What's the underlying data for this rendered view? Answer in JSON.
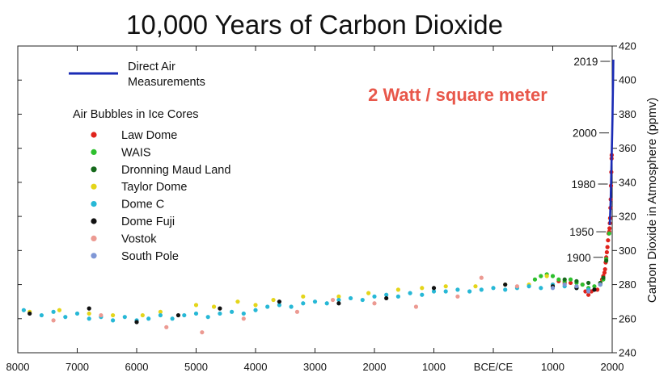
{
  "chart_data": {
    "type": "scatter",
    "title": "10,000 Years of Carbon Dioxide",
    "ylabel": "Carbon Dioxide in Atmosphere (ppmv)",
    "xlabel": "",
    "xlim": [
      -8000,
      2000
    ],
    "ylim": [
      240,
      420
    ],
    "x_ticks": [
      {
        "value": -8000,
        "label": "8000"
      },
      {
        "value": -7000,
        "label": "7000"
      },
      {
        "value": -6000,
        "label": "6000"
      },
      {
        "value": -5000,
        "label": "5000"
      },
      {
        "value": -4000,
        "label": "4000"
      },
      {
        "value": -3000,
        "label": "3000"
      },
      {
        "value": -2000,
        "label": "2000"
      },
      {
        "value": -1000,
        "label": "1000"
      },
      {
        "value": 0,
        "label": "BCE/CE"
      },
      {
        "value": 1000,
        "label": "1000"
      },
      {
        "value": 2000,
        "label": "2000"
      }
    ],
    "y_ticks": [
      240,
      260,
      280,
      300,
      320,
      340,
      360,
      380,
      400,
      420
    ],
    "grid": false,
    "legend_position": "top-left",
    "annotation": {
      "text": "2 Watt / square meter",
      "color": "#e8574a"
    },
    "year_markers": [
      {
        "label": "2019",
        "x": 2019,
        "y": 411
      },
      {
        "label": "2000",
        "x": 2000,
        "y": 369
      },
      {
        "label": "1980",
        "x": 1980,
        "y": 339
      },
      {
        "label": "1950",
        "x": 1950,
        "y": 311
      },
      {
        "label": "1900",
        "x": 1900,
        "y": 296
      }
    ],
    "legend": {
      "line_entry": {
        "label_line1": "Direct Air",
        "label_line2": "Measurements",
        "color": "#1a2bb5"
      },
      "heading": "Air Bubbles in Ice Cores"
    },
    "series": [
      {
        "name": "Direct Air Measurements",
        "kind": "line",
        "color": "#1a2bb5",
        "points": [
          [
            1958,
            315
          ],
          [
            1965,
            320
          ],
          [
            1970,
            325
          ],
          [
            1975,
            331
          ],
          [
            1980,
            338
          ],
          [
            1985,
            346
          ],
          [
            1990,
            354
          ],
          [
            1995,
            361
          ],
          [
            2000,
            369
          ],
          [
            2005,
            379
          ],
          [
            2010,
            389
          ],
          [
            2015,
            400
          ],
          [
            2019,
            412
          ]
        ]
      },
      {
        "name": "Law Dome",
        "color": "#e0231c",
        "points": [
          [
            1000,
            280
          ],
          [
            1100,
            282
          ],
          [
            1200,
            281
          ],
          [
            1300,
            281
          ],
          [
            1400,
            279
          ],
          [
            1500,
            280
          ],
          [
            1550,
            276
          ],
          [
            1600,
            274
          ],
          [
            1650,
            276
          ],
          [
            1700,
            277
          ],
          [
            1750,
            277
          ],
          [
            1800,
            281
          ],
          [
            1830,
            283
          ],
          [
            1850,
            285
          ],
          [
            1870,
            287
          ],
          [
            1880,
            289
          ],
          [
            1890,
            293
          ],
          [
            1900,
            296
          ],
          [
            1910,
            299
          ],
          [
            1920,
            302
          ],
          [
            1930,
            306
          ],
          [
            1940,
            310
          ],
          [
            1950,
            311
          ],
          [
            1955,
            313
          ],
          [
            1960,
            316
          ],
          [
            1965,
            319
          ],
          [
            1970,
            325
          ],
          [
            1975,
            330
          ],
          [
            1980,
            338
          ],
          [
            1985,
            346
          ],
          [
            1990,
            354
          ],
          [
            1992,
            356
          ]
        ]
      },
      {
        "name": "WAIS",
        "color": "#2ec02e",
        "points": [
          [
            700,
            283
          ],
          [
            800,
            285
          ],
          [
            900,
            286
          ],
          [
            1000,
            285
          ],
          [
            1100,
            283
          ],
          [
            1200,
            282
          ],
          [
            1300,
            283
          ],
          [
            1400,
            281
          ],
          [
            1500,
            280
          ],
          [
            1600,
            278
          ],
          [
            1700,
            279
          ],
          [
            1800,
            280
          ],
          [
            1850,
            283
          ],
          [
            1900,
            295
          ],
          [
            1950,
            310
          ]
        ]
      },
      {
        "name": "Dronning Maud Land",
        "color": "#15691b",
        "points": [
          [
            1200,
            283
          ],
          [
            1400,
            282
          ],
          [
            1600,
            281
          ],
          [
            1800,
            281
          ],
          [
            1850,
            284
          ],
          [
            1900,
            294
          ]
        ]
      },
      {
        "name": "Taylor Dome",
        "color": "#e4d51a",
        "points": [
          [
            -7800,
            264
          ],
          [
            -7300,
            265
          ],
          [
            -6800,
            263
          ],
          [
            -6400,
            262
          ],
          [
            -5900,
            262
          ],
          [
            -5600,
            264
          ],
          [
            -5000,
            268
          ],
          [
            -4700,
            267
          ],
          [
            -4300,
            270
          ],
          [
            -4000,
            268
          ],
          [
            -3700,
            271
          ],
          [
            -3200,
            273
          ],
          [
            -2600,
            273
          ],
          [
            -2100,
            275
          ],
          [
            -1600,
            277
          ],
          [
            -1200,
            278
          ],
          [
            -800,
            279
          ],
          [
            -300,
            279
          ],
          [
            200,
            280
          ],
          [
            600,
            280
          ],
          [
            900,
            285
          ]
        ]
      },
      {
        "name": "Dome C",
        "color": "#27b8d6",
        "points": [
          [
            -7900,
            265
          ],
          [
            -7600,
            262
          ],
          [
            -7400,
            264
          ],
          [
            -7200,
            261
          ],
          [
            -7000,
            263
          ],
          [
            -6800,
            260
          ],
          [
            -6600,
            261
          ],
          [
            -6400,
            259
          ],
          [
            -6200,
            261
          ],
          [
            -6000,
            259
          ],
          [
            -5800,
            260
          ],
          [
            -5600,
            262
          ],
          [
            -5400,
            260
          ],
          [
            -5200,
            262
          ],
          [
            -5000,
            263
          ],
          [
            -4800,
            261
          ],
          [
            -4600,
            263
          ],
          [
            -4400,
            264
          ],
          [
            -4200,
            263
          ],
          [
            -4000,
            265
          ],
          [
            -3800,
            267
          ],
          [
            -3600,
            268
          ],
          [
            -3400,
            267
          ],
          [
            -3200,
            269
          ],
          [
            -3000,
            270
          ],
          [
            -2800,
            269
          ],
          [
            -2600,
            271
          ],
          [
            -2400,
            272
          ],
          [
            -2200,
            271
          ],
          [
            -2000,
            273
          ],
          [
            -1800,
            274
          ],
          [
            -1600,
            273
          ],
          [
            -1400,
            275
          ],
          [
            -1200,
            274
          ],
          [
            -1000,
            276
          ],
          [
            -800,
            276
          ],
          [
            -600,
            277
          ],
          [
            -400,
            276
          ],
          [
            -200,
            277
          ],
          [
            0,
            278
          ],
          [
            200,
            277
          ],
          [
            400,
            278
          ],
          [
            600,
            279
          ],
          [
            800,
            278
          ],
          [
            1000,
            280
          ],
          [
            1200,
            279
          ],
          [
            1400,
            278
          ],
          [
            1600,
            277
          ],
          [
            1800,
            280
          ]
        ]
      },
      {
        "name": "Dome Fuji",
        "color": "#111111",
        "points": [
          [
            -7800,
            263
          ],
          [
            -6800,
            266
          ],
          [
            -6000,
            258
          ],
          [
            -5300,
            262
          ],
          [
            -4600,
            266
          ],
          [
            -3600,
            270
          ],
          [
            -2600,
            269
          ],
          [
            -1800,
            272
          ],
          [
            -1000,
            278
          ],
          [
            200,
            280
          ],
          [
            1000,
            279
          ],
          [
            1400,
            278
          ],
          [
            1700,
            277
          ]
        ]
      },
      {
        "name": "Vostok",
        "color": "#ec9a92",
        "points": [
          [
            -7400,
            259
          ],
          [
            -6600,
            262
          ],
          [
            -5500,
            255
          ],
          [
            -4900,
            252
          ],
          [
            -4200,
            260
          ],
          [
            -3300,
            264
          ],
          [
            -2700,
            271
          ],
          [
            -2000,
            269
          ],
          [
            -1300,
            267
          ],
          [
            -600,
            273
          ],
          [
            -200,
            284
          ],
          [
            400,
            279
          ]
        ]
      },
      {
        "name": "South Pole",
        "color": "#7f97d6",
        "points": [
          [
            1000,
            278
          ],
          [
            1200,
            280
          ],
          [
            1400,
            279
          ],
          [
            1600,
            276
          ],
          [
            1800,
            280
          ]
        ]
      }
    ]
  }
}
